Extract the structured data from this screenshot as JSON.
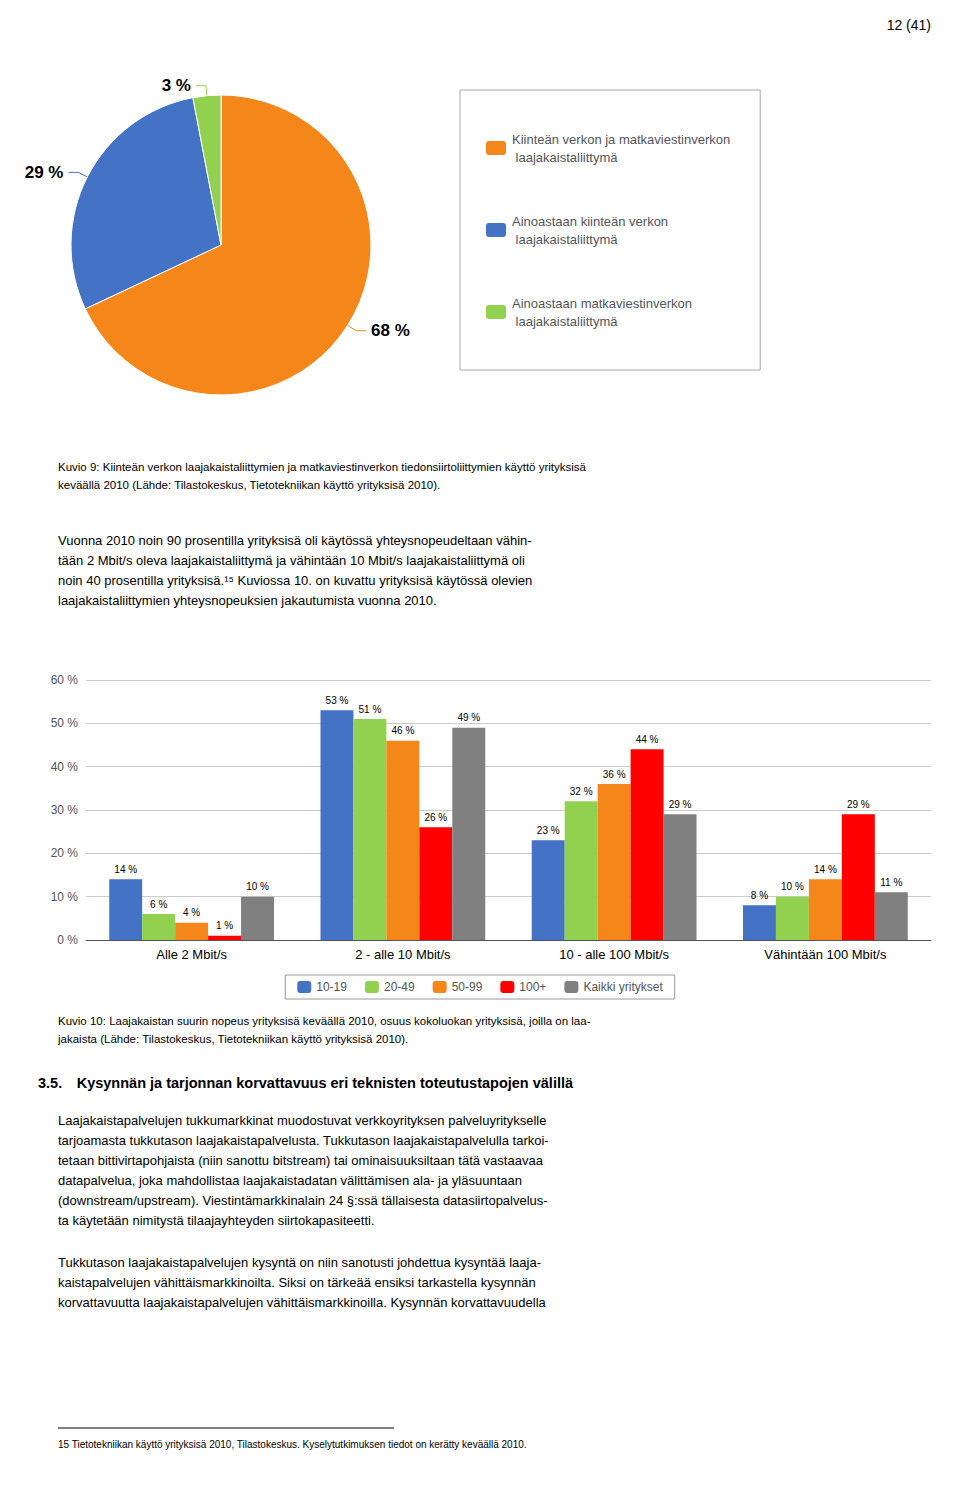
{
  "chart_data": [
    {
      "type": "pie",
      "categories": [
        "Kiinteän verkon ja matkaviestinverkon\n laajakaistaliittymä",
        "Ainoastaan kiinteän verkon\n laajakaistaliittymä",
        "Ainoastaan matkaviestinverkon\n laajakaistaliittymä"
      ],
      "values": [
        68,
        29,
        3
      ],
      "value_labels": [
        "68 %",
        "29 %",
        "3 %"
      ],
      "colors": [
        "#F5871A",
        "#4472C4",
        "#92D050"
      ],
      "data_labels": true,
      "legend": "right",
      "annotations": [
        "12 (41)",
        "Kuvio 9: Kiinteän verkon laajakaistaliittymien ja matkaviestinverkon tiedonsiirtoliittymien käyttö yrityksisä\nkeväällä 2010 (Lähde: Tilastokeskus, Tietotekniikan käyttö yrityksisä 2010).",
        "Vuonna 2010 noin 90 prosentilla yrityksisä oli käytössä yhteysnopeudeltaan vähin-\ntään 2 Mbit/s oleva laajakaistaliittymä ja vähintään 10 Mbit/s laajakaistaliittymä oli\nnoin 40 prosentilla yrityksisä.¹⁵ Kuviossa 10. on kuvattu yrityksisä käytössä olevien\nlaajakaistaliittymien yhteysnopeuksien jakautumista vuonna 2010."
      ]
    },
    {
      "type": "bar",
      "categories": [
        "Alle 2 Mbit/s",
        "2 - alle 10 Mbit/s",
        "10 - alle 100 Mbit/s",
        "Vähintään 100 Mbit/s"
      ],
      "series": [
        {
          "name": "10-19",
          "color": "#4472C4",
          "values": [
            14,
            53,
            23,
            8
          ],
          "value_labels": [
            "14 %",
            "53 %",
            "23 %",
            "8 %"
          ]
        },
        {
          "name": "20-49",
          "color": "#92D050",
          "values": [
            6,
            51,
            32,
            10
          ],
          "value_labels": [
            "6 %",
            "51 %",
            "32 %",
            "10 %"
          ]
        },
        {
          "name": "50-99",
          "color": "#F5871A",
          "values": [
            4,
            46,
            36,
            14
          ],
          "value_labels": [
            "4 %",
            "46 %",
            "36 %",
            "14 %"
          ]
        },
        {
          "name": "100+",
          "color": "#FF0000",
          "values": [
            1,
            26,
            44,
            29
          ],
          "value_labels": [
            "1 %",
            "26 %",
            "44 %",
            "29 %"
          ]
        },
        {
          "name": "Kaikki yritykset",
          "color": "#808080",
          "values": [
            10,
            49,
            29,
            11
          ],
          "value_labels": [
            "10 %",
            "49 %",
            "29 %",
            "11 %"
          ]
        }
      ],
      "ylim": [
        0,
        60
      ],
      "yticks": [
        {
          "value": 0,
          "label": "0 %"
        },
        {
          "value": 10,
          "label": "10 %"
        },
        {
          "value": 20,
          "label": "20 %"
        },
        {
          "value": 30,
          "label": "30 %"
        },
        {
          "value": 40,
          "label": "40 %"
        },
        {
          "value": 50,
          "label": "50 %"
        },
        {
          "value": 60,
          "label": "60 %"
        }
      ],
      "grid": true,
      "data_labels": true,
      "legend": "bottom",
      "annotations": [
        "Kuvio 10: Laajakaistan suurin nopeus yrityksisä keväällä 2010, osuus kokoluokan yrityksisä, joilla on laa-\njakaista (Lähde: Tilastokeskus, Tietotekniikan käyttö yrityksisä 2010).",
        "3.5. Kysynnän ja tarjonnan korvattavuus eri teknisten toteutustapojen välillä",
        "Laajakaistapalvelujen tukkumarkkinat muodostuvat verkkoyrityksen palveluyritykselle\ntarjoamasta tukkutason laajakaistapalvelusta. Tukkutason laajakaistapalvelulla tarkoi-\ntetaan bittivirtapohjaista (niin sanottu bitstream) tai ominaisuuksiltaan tätä vastaavaa\ndatapalvelua, joka mahdollistaa laajakaistadatan välittämisen ala- ja yläsuuntaan\n(downstream/upstream). Viestintämarkkinalain 24 §:ssä tällaisesta datasiirtopalvelus-\nta käytetään nimitystä tilaajayhteyden siirtokapasiteetti.",
        "Tukkutason laajakaistapalvelujen kysyntä on niin sanotusti johdettua kysyntää laaja-\nkaistapalvelujen vähittäismarkkinoilta. Siksi on tärkeää ensiksi tarkastella kysynnän\nkorvattavuutta laajakaistapalvelujen vähittäismarkkinoilla. Kysynnän korvattavuudella",
        "15 Tietotekniikan käyttö yrityksisä 2010, Tilastokeskus. Kyselytutkimuksen tiedot on kerätty keväällä 2010."
      ]
    }
  ]
}
